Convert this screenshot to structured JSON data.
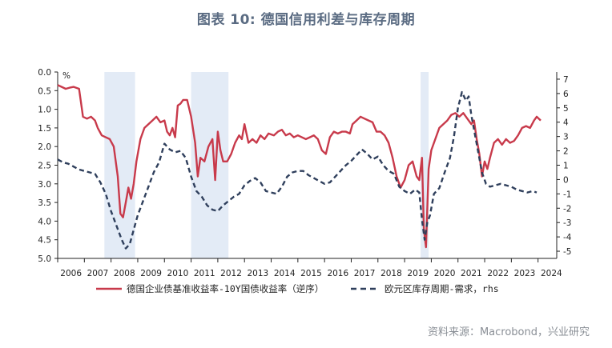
{
  "title": "图表 10: 德国信用利差与库存周期",
  "source": "资料来源：Macrobond，兴业研究",
  "chart_data": {
    "type": "line",
    "left_axis": {
      "unit_label": "%",
      "ylim": [
        0,
        5
      ],
      "inverted": true,
      "ticks": [
        "0.0",
        "0.5",
        "1.0",
        "1.5",
        "2.0",
        "2.5",
        "3.0",
        "3.5",
        "4.0",
        "4.5",
        "5.0"
      ]
    },
    "right_axis": {
      "ylim": [
        -5.5,
        7.5
      ],
      "ticks": [
        "7",
        "6",
        "5",
        "4",
        "3",
        "2",
        "1",
        "0",
        "-1",
        "-2",
        "-3",
        "-4",
        "-5"
      ]
    },
    "x_axis": {
      "xlim": [
        2006.0,
        2024.7
      ],
      "ticks": [
        "2006",
        "2007",
        "2008",
        "2009",
        "2010",
        "2011",
        "2012",
        "2013",
        "2014",
        "2015",
        "2016",
        "2017",
        "2018",
        "2019",
        "2020",
        "2021",
        "2022",
        "2023",
        "2024"
      ]
    },
    "grid": false,
    "legend_position": "bottom",
    "shaded_periods": [
      [
        2007.75,
        2008.9
      ],
      [
        2011.0,
        2012.4
      ],
      [
        2019.6,
        2019.9
      ]
    ],
    "series": [
      {
        "name": "德国企业债基准收益率-10Y国债收益率（逆序）",
        "axis": "left",
        "color": "#c83a4b",
        "style": "solid",
        "points": [
          [
            2006.0,
            0.35
          ],
          [
            2006.15,
            0.4
          ],
          [
            2006.3,
            0.45
          ],
          [
            2006.45,
            0.42
          ],
          [
            2006.6,
            0.4
          ],
          [
            2006.8,
            0.45
          ],
          [
            2006.95,
            1.2
          ],
          [
            2007.1,
            1.25
          ],
          [
            2007.25,
            1.2
          ],
          [
            2007.4,
            1.3
          ],
          [
            2007.5,
            1.5
          ],
          [
            2007.65,
            1.7
          ],
          [
            2007.8,
            1.75
          ],
          [
            2007.95,
            1.8
          ],
          [
            2008.1,
            2.0
          ],
          [
            2008.25,
            2.8
          ],
          [
            2008.35,
            3.8
          ],
          [
            2008.45,
            3.9
          ],
          [
            2008.55,
            3.5
          ],
          [
            2008.65,
            3.1
          ],
          [
            2008.75,
            3.4
          ],
          [
            2008.85,
            3.0
          ],
          [
            2008.95,
            2.4
          ],
          [
            2009.1,
            1.8
          ],
          [
            2009.25,
            1.5
          ],
          [
            2009.4,
            1.4
          ],
          [
            2009.55,
            1.3
          ],
          [
            2009.7,
            1.2
          ],
          [
            2009.85,
            1.35
          ],
          [
            2010.0,
            1.3
          ],
          [
            2010.1,
            1.6
          ],
          [
            2010.2,
            1.7
          ],
          [
            2010.3,
            1.5
          ],
          [
            2010.4,
            1.75
          ],
          [
            2010.5,
            0.9
          ],
          [
            2010.6,
            0.85
          ],
          [
            2010.7,
            0.75
          ],
          [
            2010.85,
            0.75
          ],
          [
            2011.0,
            1.2
          ],
          [
            2011.15,
            1.9
          ],
          [
            2011.25,
            2.8
          ],
          [
            2011.35,
            2.3
          ],
          [
            2011.5,
            2.4
          ],
          [
            2011.65,
            2.0
          ],
          [
            2011.8,
            1.8
          ],
          [
            2011.9,
            2.9
          ],
          [
            2012.0,
            1.6
          ],
          [
            2012.1,
            2.1
          ],
          [
            2012.2,
            2.4
          ],
          [
            2012.35,
            2.4
          ],
          [
            2012.5,
            2.2
          ],
          [
            2012.65,
            1.9
          ],
          [
            2012.8,
            1.7
          ],
          [
            2012.9,
            1.8
          ],
          [
            2013.0,
            1.4
          ],
          [
            2013.15,
            1.9
          ],
          [
            2013.3,
            1.8
          ],
          [
            2013.45,
            1.9
          ],
          [
            2013.6,
            1.7
          ],
          [
            2013.75,
            1.8
          ],
          [
            2013.9,
            1.65
          ],
          [
            2014.1,
            1.7
          ],
          [
            2014.25,
            1.6
          ],
          [
            2014.4,
            1.55
          ],
          [
            2014.55,
            1.7
          ],
          [
            2014.7,
            1.65
          ],
          [
            2014.85,
            1.75
          ],
          [
            2015.0,
            1.7
          ],
          [
            2015.15,
            1.75
          ],
          [
            2015.3,
            1.8
          ],
          [
            2015.45,
            1.75
          ],
          [
            2015.6,
            1.7
          ],
          [
            2015.75,
            1.8
          ],
          [
            2015.9,
            2.1
          ],
          [
            2016.05,
            2.2
          ],
          [
            2016.2,
            1.75
          ],
          [
            2016.35,
            1.6
          ],
          [
            2016.5,
            1.65
          ],
          [
            2016.65,
            1.6
          ],
          [
            2016.8,
            1.6
          ],
          [
            2016.95,
            1.65
          ],
          [
            2017.05,
            1.4
          ],
          [
            2017.2,
            1.3
          ],
          [
            2017.35,
            1.2
          ],
          [
            2017.5,
            1.25
          ],
          [
            2017.65,
            1.3
          ],
          [
            2017.8,
            1.35
          ],
          [
            2017.95,
            1.6
          ],
          [
            2018.1,
            1.6
          ],
          [
            2018.25,
            1.7
          ],
          [
            2018.4,
            1.9
          ],
          [
            2018.55,
            2.3
          ],
          [
            2018.7,
            2.8
          ],
          [
            2018.85,
            3.1
          ],
          [
            2019.0,
            2.9
          ],
          [
            2019.15,
            2.5
          ],
          [
            2019.3,
            2.4
          ],
          [
            2019.45,
            2.8
          ],
          [
            2019.55,
            2.9
          ],
          [
            2019.65,
            2.3
          ],
          [
            2019.72,
            4.2
          ],
          [
            2019.8,
            4.7
          ],
          [
            2019.9,
            2.6
          ],
          [
            2020.0,
            2.1
          ],
          [
            2020.15,
            1.8
          ],
          [
            2020.3,
            1.5
          ],
          [
            2020.45,
            1.4
          ],
          [
            2020.6,
            1.3
          ],
          [
            2020.75,
            1.15
          ],
          [
            2020.9,
            1.1
          ],
          [
            2021.05,
            1.2
          ],
          [
            2021.2,
            1.1
          ],
          [
            2021.35,
            1.25
          ],
          [
            2021.5,
            1.4
          ],
          [
            2021.6,
            1.3
          ],
          [
            2021.7,
            1.8
          ],
          [
            2021.8,
            2.2
          ],
          [
            2021.9,
            2.8
          ],
          [
            2022.0,
            2.4
          ],
          [
            2022.1,
            2.6
          ],
          [
            2022.2,
            2.3
          ],
          [
            2022.35,
            1.9
          ],
          [
            2022.5,
            1.8
          ],
          [
            2022.65,
            1.95
          ],
          [
            2022.8,
            1.8
          ],
          [
            2022.95,
            1.9
          ],
          [
            2023.1,
            1.85
          ],
          [
            2023.25,
            1.7
          ],
          [
            2023.4,
            1.5
          ],
          [
            2023.55,
            1.45
          ],
          [
            2023.7,
            1.5
          ],
          [
            2023.85,
            1.3
          ],
          [
            2023.95,
            1.2
          ],
          [
            2024.1,
            1.3
          ]
        ]
      },
      {
        "name": "欧元区库存周期-需求，rhs",
        "axis": "right",
        "color": "#2f3f5c",
        "style": "dashed",
        "points": [
          [
            2006.0,
            1.4
          ],
          [
            2006.2,
            1.2
          ],
          [
            2006.4,
            1.1
          ],
          [
            2006.6,
            0.9
          ],
          [
            2006.8,
            0.7
          ],
          [
            2007.0,
            0.6
          ],
          [
            2007.2,
            0.5
          ],
          [
            2007.4,
            0.4
          ],
          [
            2007.6,
            -0.2
          ],
          [
            2007.8,
            -1.0
          ],
          [
            2008.0,
            -2.2
          ],
          [
            2008.2,
            -3.2
          ],
          [
            2008.4,
            -4.2
          ],
          [
            2008.55,
            -4.8
          ],
          [
            2008.7,
            -4.5
          ],
          [
            2008.85,
            -3.5
          ],
          [
            2009.0,
            -2.5
          ],
          [
            2009.2,
            -1.5
          ],
          [
            2009.4,
            -0.5
          ],
          [
            2009.6,
            0.5
          ],
          [
            2009.8,
            1.2
          ],
          [
            2010.0,
            2.5
          ],
          [
            2010.2,
            2.1
          ],
          [
            2010.4,
            1.9
          ],
          [
            2010.6,
            2.0
          ],
          [
            2010.8,
            1.5
          ],
          [
            2011.0,
            0.2
          ],
          [
            2011.2,
            -0.8
          ],
          [
            2011.4,
            -1.2
          ],
          [
            2011.6,
            -1.8
          ],
          [
            2011.8,
            -2.1
          ],
          [
            2012.0,
            -2.2
          ],
          [
            2012.2,
            -1.8
          ],
          [
            2012.4,
            -1.5
          ],
          [
            2012.6,
            -1.2
          ],
          [
            2012.8,
            -1.0
          ],
          [
            2013.0,
            -0.4
          ],
          [
            2013.2,
            -0.1
          ],
          [
            2013.4,
            0.1
          ],
          [
            2013.6,
            -0.2
          ],
          [
            2013.8,
            -0.8
          ],
          [
            2014.0,
            -0.9
          ],
          [
            2014.2,
            -1.0
          ],
          [
            2014.4,
            -0.5
          ],
          [
            2014.6,
            0.2
          ],
          [
            2014.8,
            0.5
          ],
          [
            2015.0,
            0.6
          ],
          [
            2015.2,
            0.6
          ],
          [
            2015.4,
            0.3
          ],
          [
            2015.6,
            0.1
          ],
          [
            2015.8,
            -0.1
          ],
          [
            2016.0,
            -0.3
          ],
          [
            2016.2,
            -0.2
          ],
          [
            2016.4,
            0.2
          ],
          [
            2016.6,
            0.6
          ],
          [
            2016.8,
            1.0
          ],
          [
            2017.0,
            1.3
          ],
          [
            2017.2,
            1.7
          ],
          [
            2017.4,
            2.1
          ],
          [
            2017.6,
            1.8
          ],
          [
            2017.8,
            1.4
          ],
          [
            2018.0,
            1.6
          ],
          [
            2018.2,
            1.0
          ],
          [
            2018.4,
            0.6
          ],
          [
            2018.6,
            0.4
          ],
          [
            2018.8,
            -0.5
          ],
          [
            2019.0,
            -0.8
          ],
          [
            2019.2,
            -1.0
          ],
          [
            2019.4,
            -0.7
          ],
          [
            2019.55,
            -0.9
          ],
          [
            2019.65,
            -2.8
          ],
          [
            2019.75,
            -4.2
          ],
          [
            2019.85,
            -3.0
          ],
          [
            2019.95,
            -2.5
          ],
          [
            2020.1,
            -1.0
          ],
          [
            2020.3,
            -0.6
          ],
          [
            2020.5,
            0.5
          ],
          [
            2020.7,
            1.5
          ],
          [
            2020.85,
            3.0
          ],
          [
            2021.0,
            5.0
          ],
          [
            2021.15,
            6.1
          ],
          [
            2021.3,
            5.5
          ],
          [
            2021.4,
            5.8
          ],
          [
            2021.5,
            4.5
          ],
          [
            2021.6,
            3.5
          ],
          [
            2021.75,
            2.0
          ],
          [
            2021.9,
            0.5
          ],
          [
            2022.05,
            -0.3
          ],
          [
            2022.2,
            -0.5
          ],
          [
            2022.4,
            -0.4
          ],
          [
            2022.6,
            -0.3
          ],
          [
            2022.8,
            -0.4
          ],
          [
            2023.0,
            -0.5
          ],
          [
            2023.2,
            -0.7
          ],
          [
            2023.4,
            -0.8
          ],
          [
            2023.6,
            -0.9
          ],
          [
            2023.8,
            -0.8
          ],
          [
            2023.95,
            -0.9
          ]
        ]
      }
    ]
  }
}
